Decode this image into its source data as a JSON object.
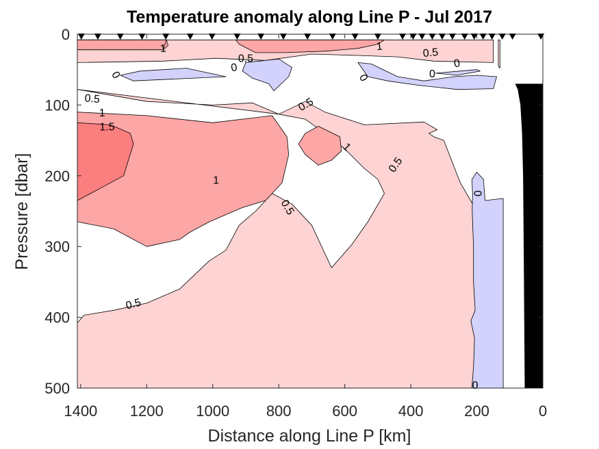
{
  "chart_data": {
    "type": "contour",
    "title": "Temperature anomaly along Line P - Jul 2017",
    "xlabel": "Distance along Line P [km]",
    "ylabel": "Pressure [dbar]",
    "xlim": [
      1410,
      0
    ],
    "ylim": [
      0,
      500
    ],
    "x_reversed": true,
    "y_reversed": true,
    "xticks": [
      1400,
      1200,
      1000,
      800,
      600,
      400,
      200,
      0
    ],
    "yticks": [
      0,
      100,
      200,
      300,
      400,
      500
    ],
    "grid": false,
    "levels": [
      0,
      0.5,
      1,
      1.5
    ],
    "colors": {
      "neg": "#d2d2fc",
      "0.5": "#fdd3d3",
      "1": "#fca6a6",
      "1.5": "#fc7f7f",
      "bathymetry": "#000000",
      "contour_line": "#000000"
    },
    "stations_km": [
      1398,
      1348,
      1280,
      1214,
      1142,
      1068,
      1002,
      926,
      854,
      786,
      713,
      637,
      569,
      500,
      425,
      393,
      366,
      335,
      305,
      274,
      237,
      208,
      181,
      154,
      123,
      92,
      6
    ],
    "regions": [
      {
        "level": "0.5",
        "points": [
          [
            1410,
            8
          ],
          [
            700,
            8
          ],
          [
            700,
            8
          ],
          [
            150,
            8
          ],
          [
            150,
            40
          ],
          [
            330,
            38
          ],
          [
            440,
            32
          ],
          [
            560,
            30
          ],
          [
            700,
            28
          ],
          [
            840,
            37
          ],
          [
            990,
            34
          ],
          [
            1150,
            38
          ],
          [
            1410,
            40
          ]
        ]
      },
      {
        "level": "1",
        "points": [
          [
            1410,
            8
          ],
          [
            1140,
            8
          ],
          [
            1135,
            16
          ],
          [
            1150,
            22
          ],
          [
            1260,
            22
          ],
          [
            1410,
            22
          ]
        ]
      },
      {
        "level": "1",
        "points": [
          [
            1410,
            8
          ],
          [
            1140,
            8
          ],
          [
            1150,
            22
          ],
          [
            1260,
            22
          ],
          [
            1410,
            22
          ]
        ]
      },
      {
        "level": "1",
        "points": [
          [
            930,
            8
          ],
          [
            480,
            8
          ],
          [
            500,
            14
          ],
          [
            560,
            20
          ],
          [
            660,
            24
          ],
          [
            780,
            26
          ],
          [
            870,
            26
          ],
          [
            920,
            14
          ]
        ]
      },
      {
        "level": "0.5",
        "points": [
          [
            135,
            8
          ],
          [
            135,
            45
          ],
          [
            130,
            48
          ],
          [
            130,
            8
          ]
        ]
      },
      {
        "level": "neg",
        "points": [
          [
            1280,
            58
          ],
          [
            1220,
            52
          ],
          [
            1080,
            48
          ],
          [
            960,
            60
          ],
          [
            1240,
            66
          ]
        ]
      },
      {
        "level": "neg",
        "points": [
          [
            900,
            40
          ],
          [
            800,
            35
          ],
          [
            760,
            47
          ],
          [
            770,
            60
          ],
          [
            815,
            80
          ],
          [
            830,
            70
          ],
          [
            880,
            62
          ],
          [
            910,
            52
          ]
        ]
      },
      {
        "level": "neg",
        "points": [
          [
            560,
            40
          ],
          [
            520,
            42
          ],
          [
            440,
            60
          ],
          [
            360,
            66
          ],
          [
            270,
            60
          ],
          [
            200,
            58
          ],
          [
            140,
            60
          ],
          [
            150,
            77
          ],
          [
            260,
            78
          ],
          [
            380,
            72
          ],
          [
            470,
            66
          ],
          [
            530,
            60
          ]
        ]
      },
      {
        "level": "neg",
        "points": [
          [
            325,
            55
          ],
          [
            250,
            52
          ],
          [
            200,
            50
          ],
          [
            190,
            52
          ],
          [
            260,
            58
          ]
        ]
      },
      {
        "level": "0.5",
        "points": [
          [
            1410,
            78
          ],
          [
            1360,
            82
          ],
          [
            1200,
            95
          ],
          [
            1000,
            100
          ],
          [
            880,
            97
          ],
          [
            800,
            113
          ],
          [
            720,
            95
          ],
          [
            660,
            110
          ],
          [
            540,
            128
          ],
          [
            360,
            124
          ],
          [
            320,
            135
          ],
          [
            345,
            140
          ],
          [
            330,
            145
          ],
          [
            300,
            150
          ],
          [
            250,
            210
          ],
          [
            200,
            250
          ],
          [
            150,
            320
          ],
          [
            150,
            420
          ],
          [
            215,
            500
          ],
          [
            1410,
            500
          ],
          [
            1410,
            408
          ],
          [
            1390,
            397
          ],
          [
            1300,
            390
          ],
          [
            1200,
            380
          ],
          [
            1100,
            360
          ],
          [
            1010,
            320
          ],
          [
            960,
            305
          ],
          [
            920,
            270
          ],
          [
            870,
            250
          ],
          [
            820,
            225
          ],
          [
            760,
            240
          ],
          [
            700,
            270
          ],
          [
            640,
            330
          ],
          [
            580,
            298
          ],
          [
            530,
            265
          ],
          [
            480,
            225
          ],
          [
            500,
            205
          ],
          [
            540,
            190
          ],
          [
            600,
            162
          ],
          [
            660,
            140
          ],
          [
            720,
            120
          ],
          [
            800,
            113
          ]
        ]
      },
      {
        "level": "1",
        "points": [
          [
            1410,
            110
          ],
          [
            1200,
            115
          ],
          [
            1000,
            125
          ],
          [
            820,
            115
          ],
          [
            775,
            145
          ],
          [
            770,
            170
          ],
          [
            790,
            210
          ],
          [
            840,
            235
          ],
          [
            910,
            245
          ],
          [
            1010,
            265
          ],
          [
            1070,
            280
          ],
          [
            1100,
            290
          ],
          [
            1200,
            300
          ],
          [
            1300,
            275
          ],
          [
            1410,
            265
          ]
        ]
      },
      {
        "level": "1.5",
        "points": [
          [
            1410,
            125
          ],
          [
            1310,
            128
          ],
          [
            1250,
            140
          ],
          [
            1240,
            155
          ],
          [
            1270,
            200
          ],
          [
            1330,
            215
          ],
          [
            1410,
            235
          ]
        ]
      },
      {
        "level": "1",
        "points": [
          [
            680,
            130
          ],
          [
            720,
            140
          ],
          [
            740,
            155
          ],
          [
            720,
            170
          ],
          [
            680,
            185
          ],
          [
            640,
            178
          ],
          [
            610,
            165
          ],
          [
            615,
            145
          ]
        ]
      },
      {
        "level": "neg",
        "points": [
          [
            215,
            205
          ],
          [
            200,
            195
          ],
          [
            180,
            205
          ],
          [
            175,
            235
          ],
          [
            120,
            232
          ],
          [
            120,
            500
          ],
          [
            215,
            500
          ],
          [
            210,
            470
          ],
          [
            207,
            430
          ],
          [
            218,
            405
          ],
          [
            205,
            390
          ],
          [
            210,
            350
          ],
          [
            210,
            300
          ],
          [
            214,
            250
          ],
          [
            213,
            225
          ]
        ]
      },
      {
        "level": "bathymetry",
        "points": [
          [
            55,
            500
          ],
          [
            58,
            300
          ],
          [
            60,
            200
          ],
          [
            63,
            140
          ],
          [
            68,
            100
          ],
          [
            76,
            78
          ],
          [
            84,
            70
          ],
          [
            0,
            70
          ],
          [
            0,
            500
          ]
        ]
      }
    ],
    "contour_labels": [
      {
        "text": "1",
        "km": 1150,
        "dbar": 21,
        "rot": -5
      },
      {
        "text": "1",
        "km": 495,
        "dbar": 18,
        "rot": -5
      },
      {
        "text": "0.5",
        "km": 900,
        "dbar": 35,
        "rot": 0
      },
      {
        "text": "0.5",
        "km": 340,
        "dbar": 27,
        "rot": -5
      },
      {
        "text": "0",
        "km": 1295,
        "dbar": 58,
        "rot": 60
      },
      {
        "text": "0",
        "km": 935,
        "dbar": 48,
        "rot": -10
      },
      {
        "text": "0",
        "km": 545,
        "dbar": 62,
        "rot": 60
      },
      {
        "text": "0",
        "km": 335,
        "dbar": 57,
        "rot": 0
      },
      {
        "text": "0",
        "km": 260,
        "dbar": 42,
        "rot": -10
      },
      {
        "text": "0.5",
        "km": 1365,
        "dbar": 92,
        "rot": 5
      },
      {
        "text": "1",
        "km": 1335,
        "dbar": 112,
        "rot": 0
      },
      {
        "text": "1.5",
        "km": 1320,
        "dbar": 132,
        "rot": 0
      },
      {
        "text": "0.5",
        "km": 717,
        "dbar": 100,
        "rot": -30
      },
      {
        "text": "1",
        "km": 595,
        "dbar": 160,
        "rot": 45
      },
      {
        "text": "0.5",
        "km": 445,
        "dbar": 185,
        "rot": -55
      },
      {
        "text": "1",
        "km": 990,
        "dbar": 207,
        "rot": 0
      },
      {
        "text": "0.5",
        "km": 775,
        "dbar": 245,
        "rot": 60
      },
      {
        "text": "0.5",
        "km": 1240,
        "dbar": 382,
        "rot": -15
      },
      {
        "text": "0",
        "km": 200,
        "dbar": 225,
        "rot": 90
      },
      {
        "text": "0",
        "km": 205,
        "dbar": 497,
        "rot": 0
      }
    ]
  }
}
